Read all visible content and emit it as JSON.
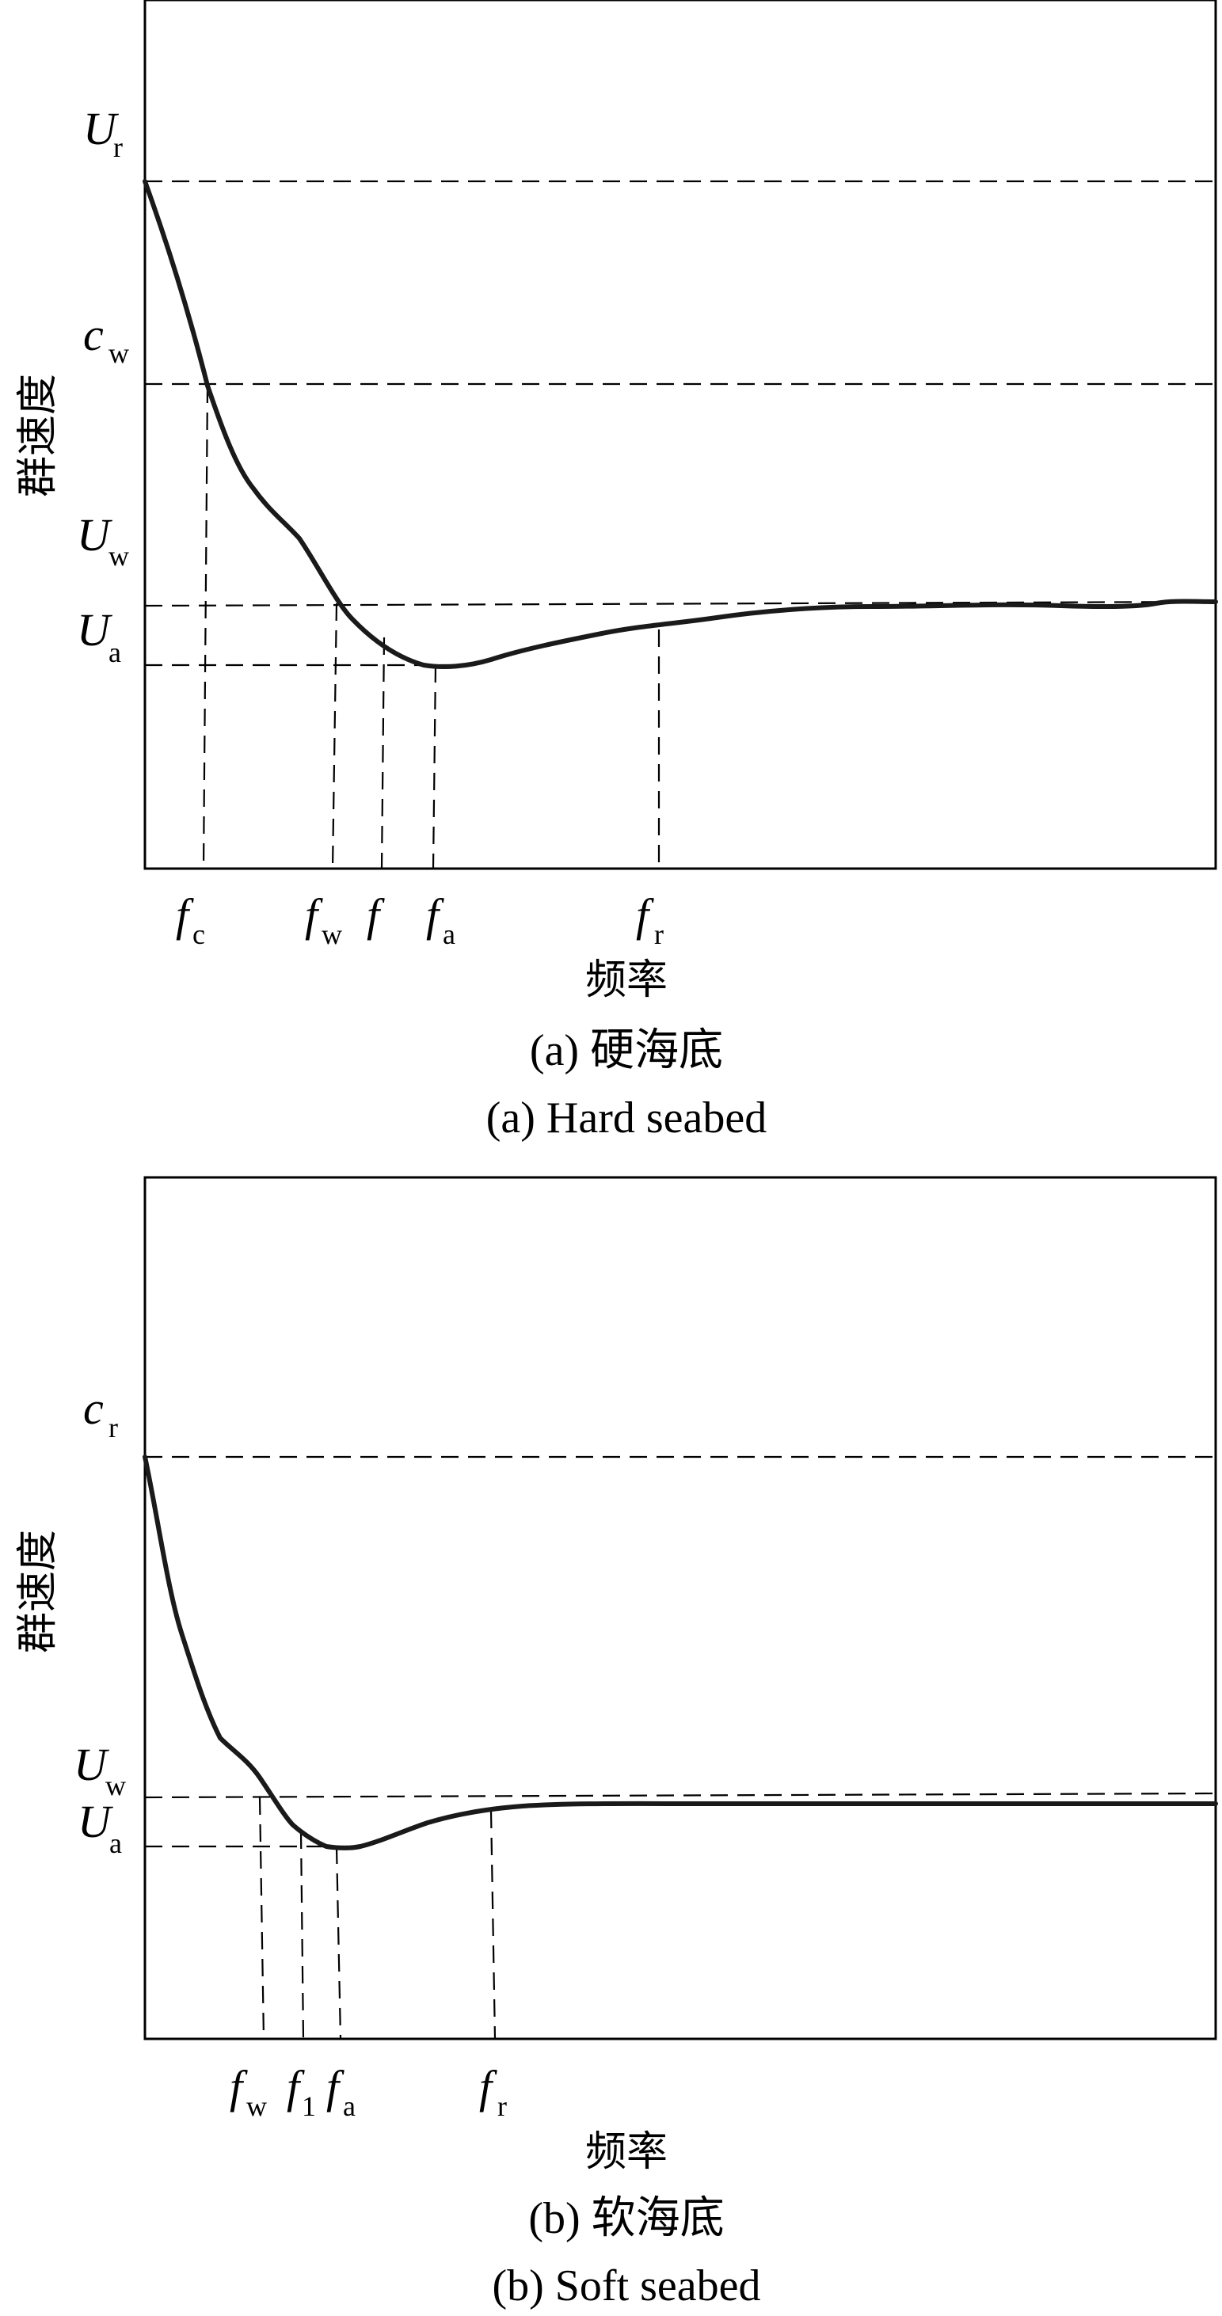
{
  "chart_data": [
    {
      "type": "line",
      "title": "",
      "caption_cn": "(a) 硬海底",
      "caption_en": "(a) Hard seabed",
      "xlabel": "频率",
      "ylabel": "群速度",
      "y_levels": [
        {
          "id": "Ur",
          "main": "U",
          "sub": "r"
        },
        {
          "id": "cw",
          "main": "c",
          "sub": "w"
        },
        {
          "id": "Uw",
          "main": "U",
          "sub": "w"
        },
        {
          "id": "Ua",
          "main": "U",
          "sub": "a"
        }
      ],
      "x_markers": [
        {
          "id": "fc",
          "main": "f",
          "sub": "c"
        },
        {
          "id": "fw",
          "main": "f",
          "sub": "w"
        },
        {
          "id": "f",
          "main": "f",
          "sub": ""
        },
        {
          "id": "fa",
          "main": "f",
          "sub": "a"
        },
        {
          "id": "fr",
          "main": "f",
          "sub": "r"
        }
      ],
      "series": [
        {
          "points": [
            [
              0,
              0.79
            ],
            [
              0.03,
              0.57
            ],
            [
              0.06,
              0.44
            ],
            [
              0.095,
              0.36
            ],
            [
              0.14,
              0.28
            ],
            [
              0.18,
              0.22
            ],
            [
              0.215,
              0.195
            ],
            [
              0.26,
              0.2
            ],
            [
              0.32,
              0.23
            ],
            [
              0.42,
              0.26
            ],
            [
              0.55,
              0.28
            ],
            [
              0.7,
              0.29
            ],
            [
              0.85,
              0.29
            ],
            [
              1.0,
              0.295
            ]
          ]
        }
      ]
    },
    {
      "type": "line",
      "title": "",
      "caption_cn": "(b) 软海底",
      "caption_en": "(b) Soft seabed",
      "xlabel": "频率",
      "ylabel": "群速度",
      "y_levels": [
        {
          "id": "cr",
          "main": "c",
          "sub": "r"
        },
        {
          "id": "Uw",
          "main": "U",
          "sub": "w"
        },
        {
          "id": "Ua",
          "main": "U",
          "sub": "a"
        }
      ],
      "x_markers": [
        {
          "id": "fw",
          "main": "f",
          "sub": "w"
        },
        {
          "id": "f1",
          "main": "f",
          "sub": "1"
        },
        {
          "id": "fa",
          "main": "f",
          "sub": "a"
        },
        {
          "id": "fr",
          "main": "f",
          "sub": "r"
        }
      ],
      "series": [
        {
          "points": [
            [
              0,
              0.68
            ],
            [
              0.035,
              0.47
            ],
            [
              0.07,
              0.35
            ],
            [
              0.105,
              0.31
            ],
            [
              0.135,
              0.26
            ],
            [
              0.165,
              0.24
            ],
            [
              0.2,
              0.245
            ],
            [
              0.25,
              0.265
            ],
            [
              0.33,
              0.28
            ],
            [
              0.45,
              0.285
            ],
            [
              0.6,
              0.285
            ],
            [
              0.8,
              0.285
            ],
            [
              1.0,
              0.285
            ]
          ]
        }
      ]
    }
  ]
}
